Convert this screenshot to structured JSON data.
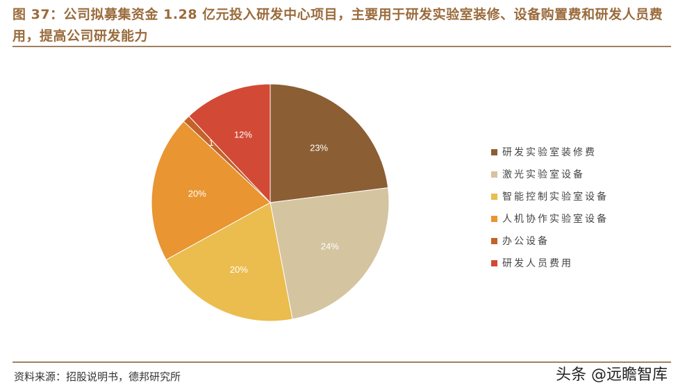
{
  "title": "图 37：公司拟募集资金 1.28 亿元投入研发中心项目，主要用于研发实验室装修、设备购置费和研发人员费用，提高公司研发能力",
  "source": "资料来源：招股说明书，德邦研究所",
  "watermark": "头条 @远瞻智库",
  "chart_data": {
    "type": "pie",
    "start": "12 o'clock, clockwise",
    "legend_position": "right",
    "categories": [
      "研发实验室装修费",
      "激光实验室设备",
      "智能控制实验室设备",
      "人机协作实验室设备",
      "办公设备",
      "研发人员费用"
    ],
    "values": [
      23,
      24,
      20,
      20,
      1,
      12
    ],
    "labels": [
      "23%",
      "24%",
      "20%",
      "20%",
      "1%",
      "12%"
    ],
    "colors": [
      "#8b5e34",
      "#d4c4a0",
      "#ebbc4e",
      "#e89532",
      "#c4622a",
      "#d24a35"
    ]
  }
}
